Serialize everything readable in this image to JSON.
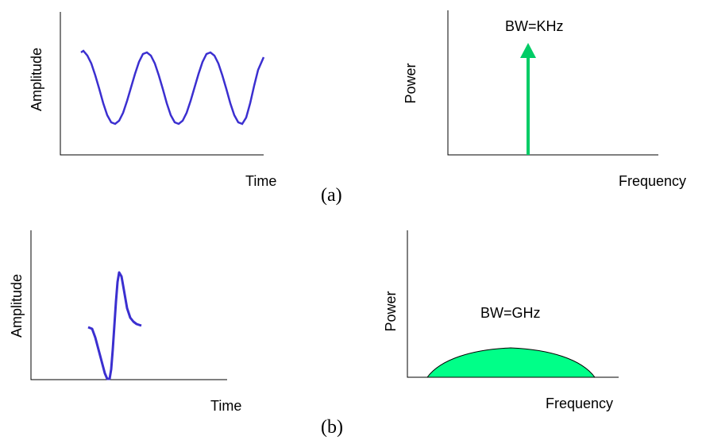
{
  "panel_a": {
    "caption": "(a)",
    "time_plot": {
      "ylabel": "Amplitude",
      "xlabel": "Time",
      "signal_color": "#3b2fd0"
    },
    "freq_plot": {
      "ylabel": "Power",
      "xlabel": "Frequency",
      "annotation": "BW=KHz",
      "arrow_color": "#00cc66"
    }
  },
  "panel_b": {
    "caption": "(b)",
    "time_plot": {
      "ylabel": "Amplitude",
      "xlabel": "Time",
      "signal_color": "#3b2fd0"
    },
    "freq_plot": {
      "ylabel": "Power",
      "xlabel": "Frequency",
      "annotation": "BW=GHz",
      "fill_color": "#00ff88"
    }
  }
}
